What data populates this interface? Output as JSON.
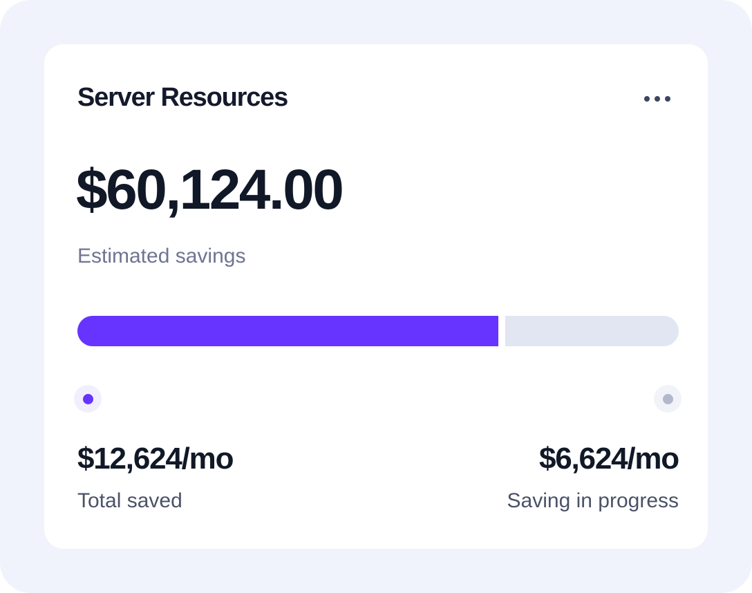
{
  "card": {
    "title": "Server Resources",
    "menu_icon": "more-horizontal-icon",
    "amount": "$60,124.00",
    "subtitle": "Estimated savings"
  },
  "progress": {
    "saved_fraction": 0.7,
    "saved_color": "#6633ff",
    "remaining_color": "#e2e6f2"
  },
  "stats": {
    "saved": {
      "value": "$12,624/mo",
      "label": "Total saved",
      "marker_color": "#6633ff"
    },
    "in_progress": {
      "value": "$6,624/mo",
      "label": "Saving in progress",
      "marker_color": "#b3b8cc"
    }
  }
}
